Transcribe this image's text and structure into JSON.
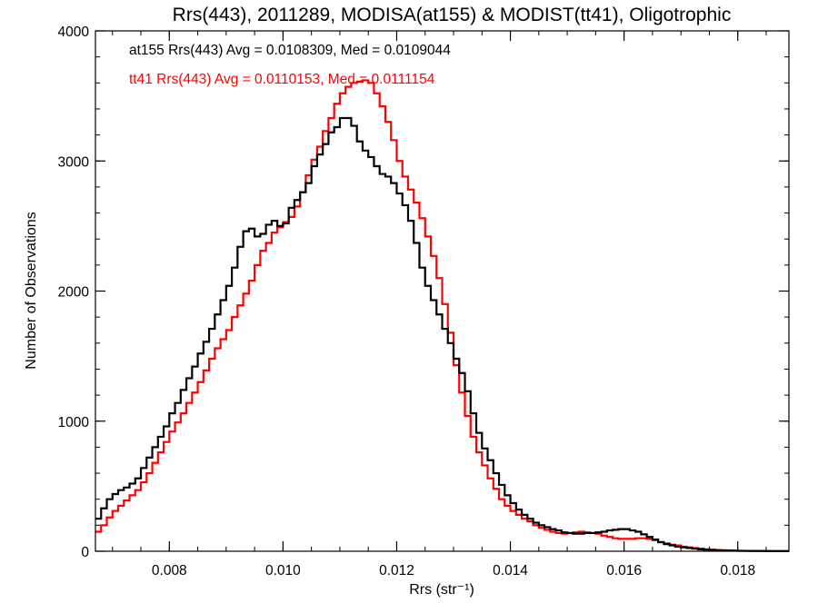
{
  "chart_data": {
    "type": "line",
    "title": "Rrs(443), 2011289, MODISA(at155) & MODIST(tt41), Oligotrophic",
    "xlabel": "Rrs (str⁻¹)",
    "ylabel": "Number of Observations",
    "xlim": [
      0.0067,
      0.0189
    ],
    "ylim": [
      0,
      4000
    ],
    "x_ticks": [
      0.008,
      0.01,
      0.012,
      0.014,
      0.016,
      0.018
    ],
    "x_tick_labels": [
      "0.008",
      "0.010",
      "0.012",
      "0.014",
      "0.016",
      "0.018"
    ],
    "y_ticks": [
      0,
      1000,
      2000,
      3000,
      4000
    ],
    "y_tick_labels": [
      "0",
      "1000",
      "2000",
      "3000",
      "4000"
    ],
    "step_style": "histogram",
    "grid": false,
    "annotations": [
      {
        "text": "at155 Rrs(443) Avg = 0.0108309, Med = 0.0109044",
        "color": "#000000"
      },
      {
        "text": "tt41 Rrs(443) Avg = 0.0110153, Med = 0.0111154",
        "color": "#ff0000"
      }
    ],
    "series": [
      {
        "color": "#000000",
        "x": [
          0.0067,
          0.0068,
          0.0069,
          0.007,
          0.0071,
          0.0072,
          0.0073,
          0.0074,
          0.0075,
          0.0076,
          0.0077,
          0.0078,
          0.0079,
          0.008,
          0.0081,
          0.0082,
          0.0083,
          0.0084,
          0.0085,
          0.0086,
          0.0087,
          0.0088,
          0.0089,
          0.009,
          0.0091,
          0.0092,
          0.0093,
          0.0094,
          0.0095,
          0.0096,
          0.0097,
          0.0098,
          0.0099,
          0.01,
          0.0101,
          0.0102,
          0.0103,
          0.0104,
          0.0105,
          0.0106,
          0.0107,
          0.0108,
          0.0109,
          0.011,
          0.0111,
          0.0112,
          0.0113,
          0.0114,
          0.0115,
          0.0116,
          0.0117,
          0.0118,
          0.0119,
          0.012,
          0.0121,
          0.0122,
          0.0123,
          0.0124,
          0.0125,
          0.0126,
          0.0127,
          0.0128,
          0.0129,
          0.013,
          0.0131,
          0.0132,
          0.0133,
          0.0134,
          0.0135,
          0.0136,
          0.0137,
          0.0138,
          0.0139,
          0.014,
          0.0141,
          0.0142,
          0.0143,
          0.0144,
          0.0145,
          0.0146,
          0.0147,
          0.0148,
          0.0149,
          0.015,
          0.0151,
          0.0152,
          0.0153,
          0.0154,
          0.0155,
          0.0156,
          0.0157,
          0.0158,
          0.0159,
          0.016,
          0.0161,
          0.0162,
          0.0163,
          0.0164,
          0.0165,
          0.0166,
          0.0167,
          0.0168,
          0.0169,
          0.017,
          0.0171,
          0.0172,
          0.0173,
          0.0174,
          0.0175,
          0.0176,
          0.0177,
          0.0178,
          0.0179,
          0.018,
          0.0181,
          0.0182,
          0.0183,
          0.0184,
          0.0185,
          0.0186,
          0.0187,
          0.0188
        ],
        "values": [
          250,
          330,
          400,
          440,
          470,
          490,
          520,
          560,
          640,
          720,
          800,
          880,
          960,
          1060,
          1140,
          1240,
          1330,
          1420,
          1520,
          1610,
          1710,
          1820,
          1930,
          2040,
          2180,
          2340,
          2460,
          2480,
          2420,
          2440,
          2510,
          2540,
          2500,
          2520,
          2640,
          2700,
          2760,
          2830,
          2960,
          3050,
          3130,
          3220,
          3260,
          3330,
          3330,
          3270,
          3150,
          3080,
          3030,
          2960,
          2900,
          2880,
          2830,
          2750,
          2660,
          2540,
          2370,
          2180,
          2040,
          1930,
          1820,
          1710,
          1600,
          1480,
          1370,
          1230,
          1060,
          910,
          790,
          700,
          600,
          510,
          430,
          370,
          320,
          280,
          250,
          220,
          200,
          185,
          170,
          160,
          145,
          140,
          135,
          135,
          140,
          140,
          145,
          150,
          160,
          165,
          170,
          170,
          160,
          150,
          130,
          110,
          90,
          70,
          55,
          45,
          35,
          30,
          25,
          20,
          15,
          12,
          10,
          8,
          6,
          5,
          4,
          3,
          3,
          2,
          2,
          2,
          1,
          1,
          1,
          1
        ]
      },
      {
        "color": "#ff0000",
        "x": [
          0.0067,
          0.0068,
          0.0069,
          0.007,
          0.0071,
          0.0072,
          0.0073,
          0.0074,
          0.0075,
          0.0076,
          0.0077,
          0.0078,
          0.0079,
          0.008,
          0.0081,
          0.0082,
          0.0083,
          0.0084,
          0.0085,
          0.0086,
          0.0087,
          0.0088,
          0.0089,
          0.009,
          0.0091,
          0.0092,
          0.0093,
          0.0094,
          0.0095,
          0.0096,
          0.0097,
          0.0098,
          0.0099,
          0.01,
          0.0101,
          0.0102,
          0.0103,
          0.0104,
          0.0105,
          0.0106,
          0.0107,
          0.0108,
          0.0109,
          0.011,
          0.0111,
          0.0112,
          0.0113,
          0.0114,
          0.0115,
          0.0116,
          0.0117,
          0.0118,
          0.0119,
          0.012,
          0.0121,
          0.0122,
          0.0123,
          0.0124,
          0.0125,
          0.0126,
          0.0127,
          0.0128,
          0.0129,
          0.013,
          0.0131,
          0.0132,
          0.0133,
          0.0134,
          0.0135,
          0.0136,
          0.0137,
          0.0138,
          0.0139,
          0.014,
          0.0141,
          0.0142,
          0.0143,
          0.0144,
          0.0145,
          0.0146,
          0.0147,
          0.0148,
          0.0149,
          0.015,
          0.0151,
          0.0152,
          0.0153,
          0.0154,
          0.0155,
          0.0156,
          0.0157,
          0.0158,
          0.0159,
          0.016,
          0.0161,
          0.0162,
          0.0163,
          0.0164,
          0.0165,
          0.0166,
          0.0167,
          0.0168,
          0.0169,
          0.017,
          0.0171,
          0.0172,
          0.0173,
          0.0174,
          0.0175,
          0.0176,
          0.0177,
          0.0178,
          0.0179,
          0.018,
          0.0181,
          0.0182,
          0.0183,
          0.0184,
          0.0185,
          0.0186,
          0.0187,
          0.0188
        ],
        "values": [
          150,
          200,
          260,
          310,
          350,
          390,
          430,
          470,
          530,
          600,
          680,
          760,
          840,
          920,
          990,
          1060,
          1140,
          1220,
          1300,
          1390,
          1480,
          1560,
          1630,
          1700,
          1800,
          1890,
          1980,
          2080,
          2200,
          2310,
          2370,
          2450,
          2490,
          2530,
          2570,
          2650,
          2760,
          2890,
          3010,
          3110,
          3230,
          3330,
          3440,
          3520,
          3570,
          3600,
          3610,
          3620,
          3600,
          3520,
          3420,
          3300,
          3160,
          3000,
          2880,
          2780,
          2680,
          2560,
          2420,
          2270,
          2100,
          1900,
          1680,
          1430,
          1220,
          1040,
          880,
          760,
          660,
          560,
          480,
          400,
          350,
          310,
          280,
          250,
          230,
          200,
          180,
          165,
          150,
          140,
          135,
          140,
          145,
          150,
          145,
          140,
          135,
          120,
          110,
          100,
          95,
          95,
          95,
          100,
          100,
          95,
          85,
          70,
          60,
          50,
          45,
          35,
          30,
          25,
          20,
          15,
          12,
          10,
          8,
          6,
          5,
          4,
          3,
          3,
          2,
          2,
          2,
          1,
          1,
          1
        ]
      }
    ]
  }
}
